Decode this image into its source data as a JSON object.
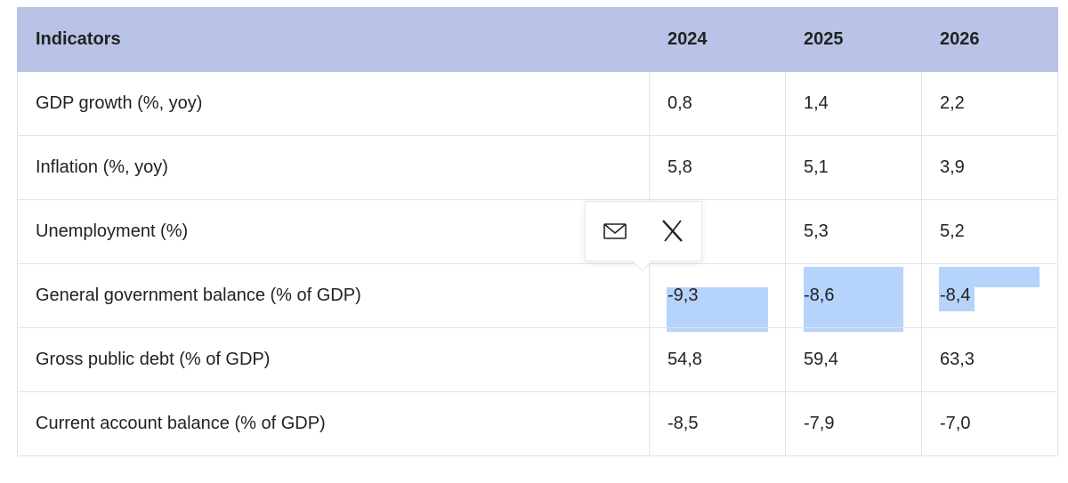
{
  "table": {
    "header": [
      "Indicators",
      "2024",
      "2025",
      "2026"
    ],
    "rows": [
      [
        "GDP growth (%, yoy)",
        "0,8",
        "1,4",
        "2,2"
      ],
      [
        "Inflation (%, yoy)",
        "5,8",
        "5,1",
        "3,9"
      ],
      [
        "Unemployment (%)",
        null,
        "5,3",
        "5,2"
      ],
      [
        "General government balance (% of GDP)",
        "-9,3",
        "-8,6",
        "-8,4"
      ],
      [
        "Gross public debt (% of GDP)",
        "54,8",
        "59,4",
        "63,3"
      ],
      [
        "Current account balance (% of GDP)",
        "-8,5",
        "-7,9",
        "-7,0"
      ]
    ]
  }
}
